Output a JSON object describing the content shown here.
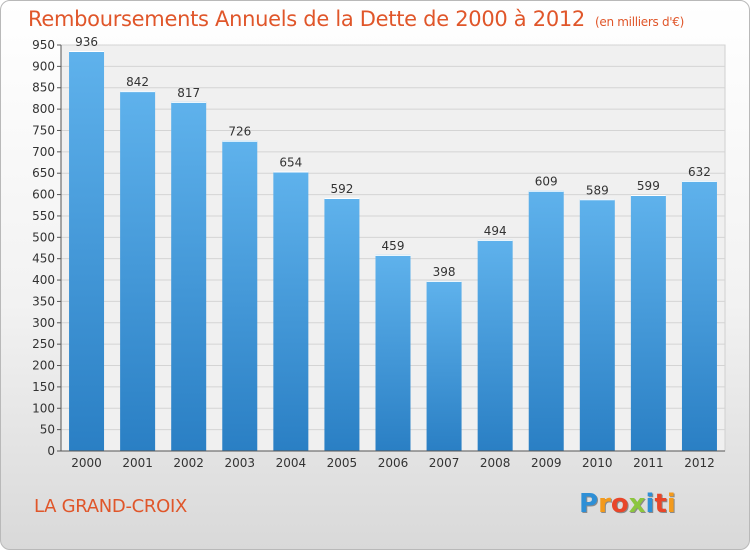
{
  "header": {
    "title": "Remboursements Annuels de la Dette de 2000 à 2012",
    "unit": "(en milliers d'€)"
  },
  "footer": {
    "city": "LA GRAND-CROIX",
    "logo_letters": [
      "P",
      "r",
      "o",
      "x",
      "i",
      "t",
      "i"
    ],
    "logo_colors": [
      "#2e8fd6",
      "#f39a1c",
      "#e8462a",
      "#8cc63f",
      "#2e8fd6",
      "#e8462a",
      "#f39a1c"
    ]
  },
  "chart_data": {
    "type": "bar",
    "title": "Remboursements Annuels de la Dette de 2000 à 2012",
    "subtitle": "(en milliers d'€)",
    "xlabel": "",
    "ylabel": "",
    "categories": [
      "2000",
      "2001",
      "2002",
      "2003",
      "2004",
      "2005",
      "2006",
      "2007",
      "2008",
      "2009",
      "2010",
      "2011",
      "2012"
    ],
    "values": [
      936,
      842,
      817,
      726,
      654,
      592,
      459,
      398,
      494,
      609,
      589,
      599,
      632
    ],
    "ylim": [
      0,
      950
    ],
    "yticks": [
      0,
      50,
      100,
      150,
      200,
      250,
      300,
      350,
      400,
      450,
      500,
      550,
      600,
      650,
      700,
      750,
      800,
      850,
      900,
      950
    ],
    "grid": true,
    "data_labels": true,
    "bar_color_top": "#5fb2ec",
    "bar_color_bottom": "#2a7fc4",
    "text_color": "#e0562a"
  }
}
